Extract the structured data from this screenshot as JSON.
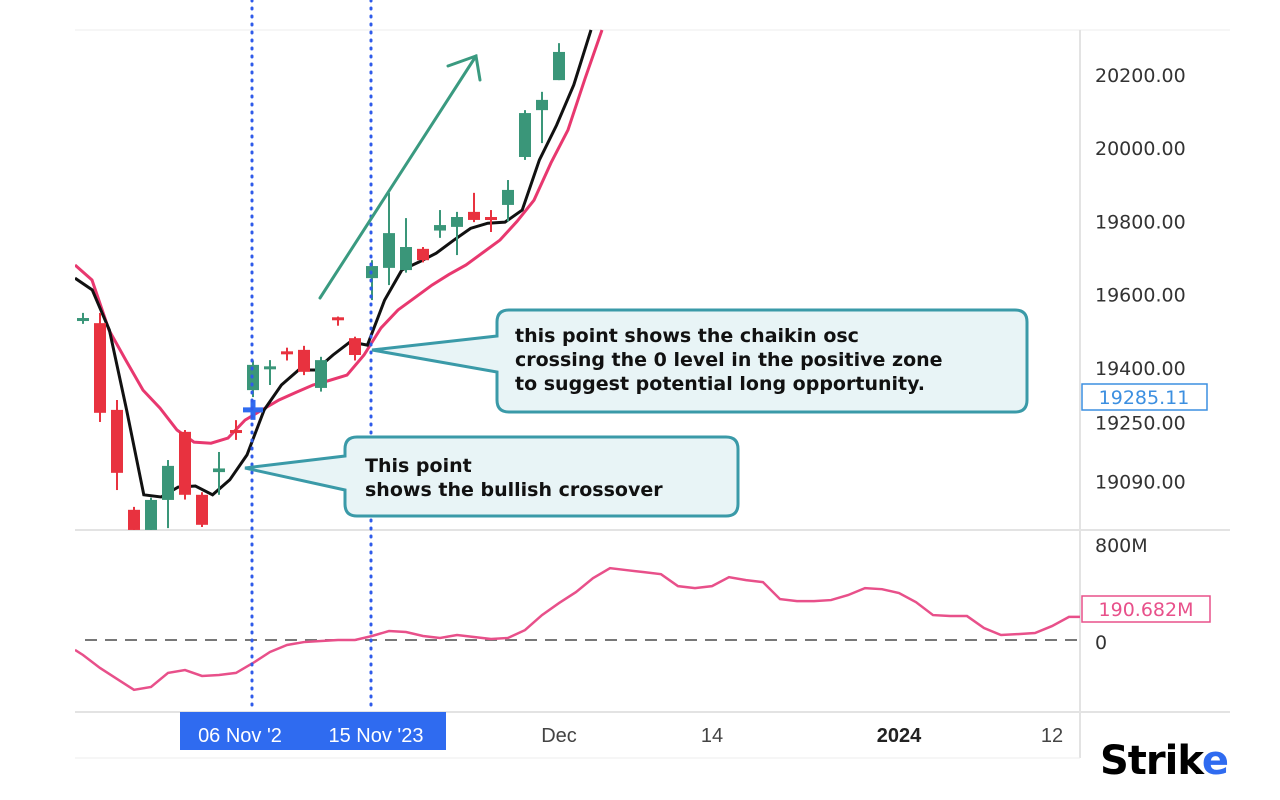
{
  "chart_data": {
    "type": "candlestick",
    "title": "",
    "colors": {
      "up": "#3a9679",
      "down": "#e8323f",
      "ema": "#111111",
      "band": "#e8386f",
      "oscillator": "#e8508a",
      "marker": "#2f6bf0",
      "callout_fill": "#e8f4f6",
      "callout_border": "#3a9aa8",
      "arrow": "#3a9a80",
      "time_highlight": "#2f6bf0",
      "price_label": "#3c8fe0",
      "osc_label": "#e8508a"
    },
    "dates": [
      "2023-10-20",
      "2023-10-23",
      "2023-10-25",
      "2023-10-26",
      "2023-10-27",
      "2023-10-30",
      "2023-10-31",
      "2023-11-01",
      "2023-11-02",
      "2023-11-03",
      "2023-11-06",
      "2023-11-07",
      "2023-11-08",
      "2023-11-09",
      "2023-11-10",
      "2023-11-12",
      "2023-11-13",
      "2023-11-15",
      "2023-11-16",
      "2023-11-17",
      "2023-11-20",
      "2023-11-21",
      "2023-11-22",
      "2023-11-23",
      "2023-11-24",
      "2023-11-28",
      "2023-11-29",
      "2023-11-30",
      "2023-12-01",
      "2023-12-04",
      "2023-12-05",
      "2023-12-06",
      "2023-12-07",
      "2023-12-08",
      "2023-12-11",
      "2023-12-12",
      "2023-12-13",
      "2023-12-14",
      "2023-12-15",
      "2023-12-18",
      "2023-12-19",
      "2023-12-20",
      "2023-12-21",
      "2023-12-22",
      "2023-12-26",
      "2023-12-27",
      "2023-12-28",
      "2023-12-29",
      "2024-01-01",
      "2024-01-02",
      "2024-01-03",
      "2024-01-04",
      "2024-01-05",
      "2024-01-08",
      "2024-01-09",
      "2024-01-10",
      "2024-01-11",
      "2024-01-12",
      "2024-01-15"
    ],
    "candles": [
      {
        "o": 19530,
        "h": 19550,
        "l": 19520,
        "c": 19536
      },
      {
        "o": 19522,
        "h": 19550,
        "l": 19252,
        "c": 19277
      },
      {
        "o": 19285,
        "h": 19312,
        "l": 19066,
        "c": 19113
      },
      {
        "o": 19012,
        "h": 19020,
        "l": 18950,
        "c": 18957
      },
      {
        "o": 18957,
        "h": 19045,
        "l": 18950,
        "c": 19039
      },
      {
        "o": 19039,
        "h": 19148,
        "l": 18962,
        "c": 19132
      },
      {
        "o": 19225,
        "h": 19230,
        "l": 19040,
        "c": 19053
      },
      {
        "o": 19053,
        "h": 19060,
        "l": 18965,
        "c": 18971
      },
      {
        "o": 19115,
        "h": 19170,
        "l": 19053,
        "c": 19125
      },
      {
        "o": 19230,
        "h": 19257,
        "l": 19203,
        "c": 19222
      },
      {
        "o": 19339,
        "h": 19420,
        "l": 19320,
        "c": 19408
      },
      {
        "o": 19400,
        "h": 19421,
        "l": 19353,
        "c": 19404
      },
      {
        "o": 19445,
        "h": 19455,
        "l": 19420,
        "c": 19441
      },
      {
        "o": 19449,
        "h": 19460,
        "l": 19380,
        "c": 19389
      },
      {
        "o": 19345,
        "h": 19430,
        "l": 19335,
        "c": 19421
      },
      {
        "o": 19538,
        "h": 19540,
        "l": 19515,
        "c": 19530
      },
      {
        "o": 19481,
        "h": 19485,
        "l": 19420,
        "c": 19435
      },
      {
        "o": 19645,
        "h": 19694,
        "l": 19585,
        "c": 19678
      },
      {
        "o": 19673,
        "h": 19878,
        "l": 19626,
        "c": 19768
      },
      {
        "o": 19667,
        "h": 19809,
        "l": 19660,
        "c": 19730
      },
      {
        "o": 19725,
        "h": 19730,
        "l": 19688,
        "c": 19694
      },
      {
        "o": 19775,
        "h": 19831,
        "l": 19755,
        "c": 19790
      },
      {
        "o": 19785,
        "h": 19826,
        "l": 19708,
        "c": 19812
      },
      {
        "o": 19826,
        "h": 19878,
        "l": 19798,
        "c": 19804
      },
      {
        "o": 19812,
        "h": 19831,
        "l": 19771,
        "c": 19806
      },
      {
        "o": 19845,
        "h": 19913,
        "l": 19800,
        "c": 19886
      },
      {
        "o": 19976,
        "h": 20104,
        "l": 19968,
        "c": 20096
      },
      {
        "o": 20104,
        "h": 20154,
        "l": 20014,
        "c": 20132
      },
      {
        "o": 20186,
        "h": 20287,
        "l": 20186,
        "c": 20263
      }
    ],
    "ema": [
      19645,
      19613,
      19503,
      19285,
      19053,
      19047,
      19074,
      19077,
      19053,
      19094,
      19162,
      19285,
      19353,
      19394,
      19394,
      19435,
      19471,
      19462,
      19585,
      19667,
      19689,
      19713,
      19748,
      19781,
      19795,
      19798,
      19831,
      19968,
      20063,
      20173,
      20323
    ],
    "band": [
      19681,
      19640,
      19503,
      19420,
      19339,
      19290,
      19230,
      19197,
      19194,
      19208,
      19257,
      19285,
      19312,
      19333,
      19353,
      19366,
      19380,
      19435,
      19509,
      19558,
      19592,
      19626,
      19655,
      19681,
      19715,
      19749,
      19800,
      19858,
      19960,
      20050,
      20190,
      20323
    ],
    "oscillator_values_M": [
      -124,
      -231,
      -322,
      -412,
      -388,
      -272,
      -248,
      -297,
      -289,
      -272,
      -190,
      -99,
      -41,
      -17,
      -8,
      0,
      0,
      33,
      74,
      66,
      33,
      17,
      41,
      25,
      8,
      17,
      82,
      206,
      305,
      396,
      511,
      594,
      577,
      561,
      544,
      445,
      429,
      445,
      519,
      495,
      478,
      338,
      321,
      321,
      330,
      371,
      429,
      420,
      388,
      313,
      206,
      198,
      198,
      99,
      41,
      49,
      58,
      115,
      190.682
    ],
    "price_axis": {
      "ticks": [
        "20200.00",
        "20000.00",
        "19800.00",
        "19600.00",
        "19400.00",
        "19250.00",
        "19090.00"
      ],
      "tick_values": [
        20200,
        20000,
        19800,
        19600,
        19400,
        19250,
        19090
      ]
    },
    "oscillator_axis": {
      "ticks": [
        "800M",
        "0"
      ],
      "tick_values": [
        800,
        0
      ],
      "zero_line": "dashed"
    },
    "time_axis": {
      "ticks": [
        {
          "label": "Dec",
          "date": "2023-12-01",
          "bold": false
        },
        {
          "label": "14",
          "date": "2023-12-14",
          "bold": false
        },
        {
          "label": "2024",
          "date": "2024-01-01",
          "bold": true
        },
        {
          "label": "12",
          "date": "2024-01-12",
          "bold": false
        }
      ],
      "highlighted": [
        {
          "label": "06 Nov '2",
          "date": "2023-11-06"
        },
        {
          "label": "15 Nov '23",
          "date": "2023-11-15"
        }
      ]
    },
    "current_price_label": "19285.11",
    "current_price": 19285.11,
    "oscillator_label": "190.682M",
    "vertical_markers": [
      "2023-11-06",
      "2023-11-15"
    ],
    "crossover_marker": {
      "date": "2023-11-06",
      "price": 19285.11
    },
    "annotations": [
      {
        "lines": [
          "this point shows the chaikin osc",
          "crossing the 0 level in the positive zone",
          "to suggest potential long opportunity."
        ],
        "target_date": "2023-11-15"
      },
      {
        "lines": [
          "This point",
          "shows the bullish crossover"
        ],
        "target_date": "2023-11-03"
      }
    ],
    "trend_arrow": "up"
  },
  "logo": {
    "text_main": "Stri",
    "text_k": "k",
    "text_e": "e"
  }
}
